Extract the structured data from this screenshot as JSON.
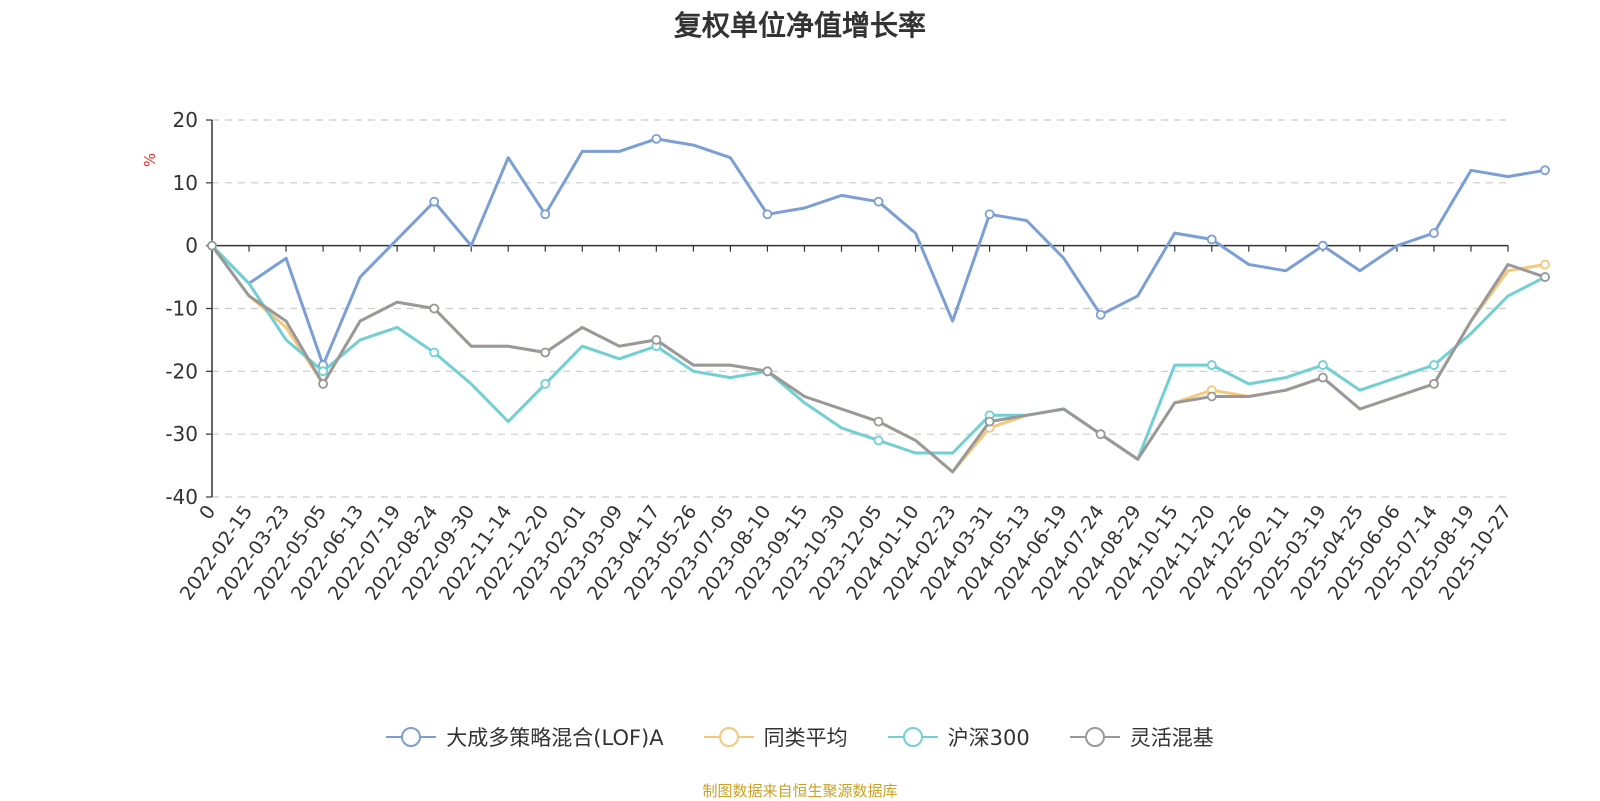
{
  "chart_data": {
    "type": "line",
    "title": "复权单位净值增长率",
    "ylabel": "%",
    "ylim": [
      -40,
      20
    ],
    "yticks": [
      -40,
      -30,
      -20,
      -10,
      0,
      10,
      20
    ],
    "x_tick_labels": [
      "0",
      "2022-02-15",
      "2022-03-23",
      "2022-05-05",
      "2022-06-13",
      "2022-07-19",
      "2022-08-24",
      "2022-09-30",
      "2022-11-14",
      "2022-12-20",
      "2023-02-01",
      "2023-03-09",
      "2023-04-17",
      "2023-05-26",
      "2023-07-05",
      "2023-08-10",
      "2023-09-15",
      "2023-10-30",
      "2023-12-05",
      "2024-01-10",
      "2024-02-23",
      "2024-03-31",
      "2024-05-13",
      "2024-06-19",
      "2024-07-24",
      "2024-08-29",
      "2024-10-15",
      "2024-11-20",
      "2024-12-26",
      "2025-02-11",
      "2025-03-19",
      "2025-04-25",
      "2025-06-06",
      "2025-07-14",
      "2025-08-19",
      "2025-10-27"
    ],
    "grid": true,
    "legend_position": "bottom",
    "series": [
      {
        "name": "大成多策略混合(LOF)A",
        "color": "#7b9fd4",
        "values": [
          0,
          -6,
          -2,
          -19,
          -5,
          1,
          7,
          0,
          14,
          5,
          15,
          15,
          17,
          16,
          14,
          5,
          6,
          8,
          7,
          2,
          -12,
          5,
          4,
          -2,
          -11,
          -8,
          2,
          1,
          -3,
          -4,
          0,
          -4,
          0,
          2,
          12,
          11,
          12
        ]
      },
      {
        "name": "同类平均",
        "color": "#f6c87a",
        "values": [
          0,
          -8,
          -13,
          -22,
          -12,
          -9,
          -10,
          -16,
          -16,
          -17,
          -13,
          -16,
          -15,
          -19,
          -19,
          -20,
          -24,
          -26,
          -28,
          -31,
          -36,
          -29,
          -27,
          -26,
          -30,
          -34,
          -25,
          -23,
          -24,
          -23,
          -21,
          -26,
          -24,
          -22,
          -12,
          -4,
          -3
        ]
      },
      {
        "name": "沪深300",
        "color": "#72cfd3",
        "values": [
          0,
          -6,
          -15,
          -20,
          -15,
          -13,
          -17,
          -22,
          -28,
          -22,
          -16,
          -18,
          -16,
          -20,
          -21,
          -20,
          -25,
          -29,
          -31,
          -33,
          -33,
          -27,
          -27,
          -26,
          -30,
          -34,
          -19,
          -19,
          -22,
          -21,
          -19,
          -23,
          -21,
          -19,
          -14,
          -8,
          -5
        ]
      },
      {
        "name": "灵活混基",
        "color": "#999999",
        "values": [
          0,
          -8,
          -12,
          -22,
          -12,
          -9,
          -10,
          -16,
          -16,
          -17,
          -13,
          -16,
          -15,
          -19,
          -19,
          -20,
          -24,
          -26,
          -28,
          -31,
          -36,
          -28,
          -27,
          -26,
          -30,
          -34,
          -25,
          -24,
          -24,
          -23,
          -21,
          -26,
          -24,
          -22,
          -12,
          -3,
          -5
        ]
      }
    ]
  },
  "footer": "制图数据来自恒生聚源数据库"
}
